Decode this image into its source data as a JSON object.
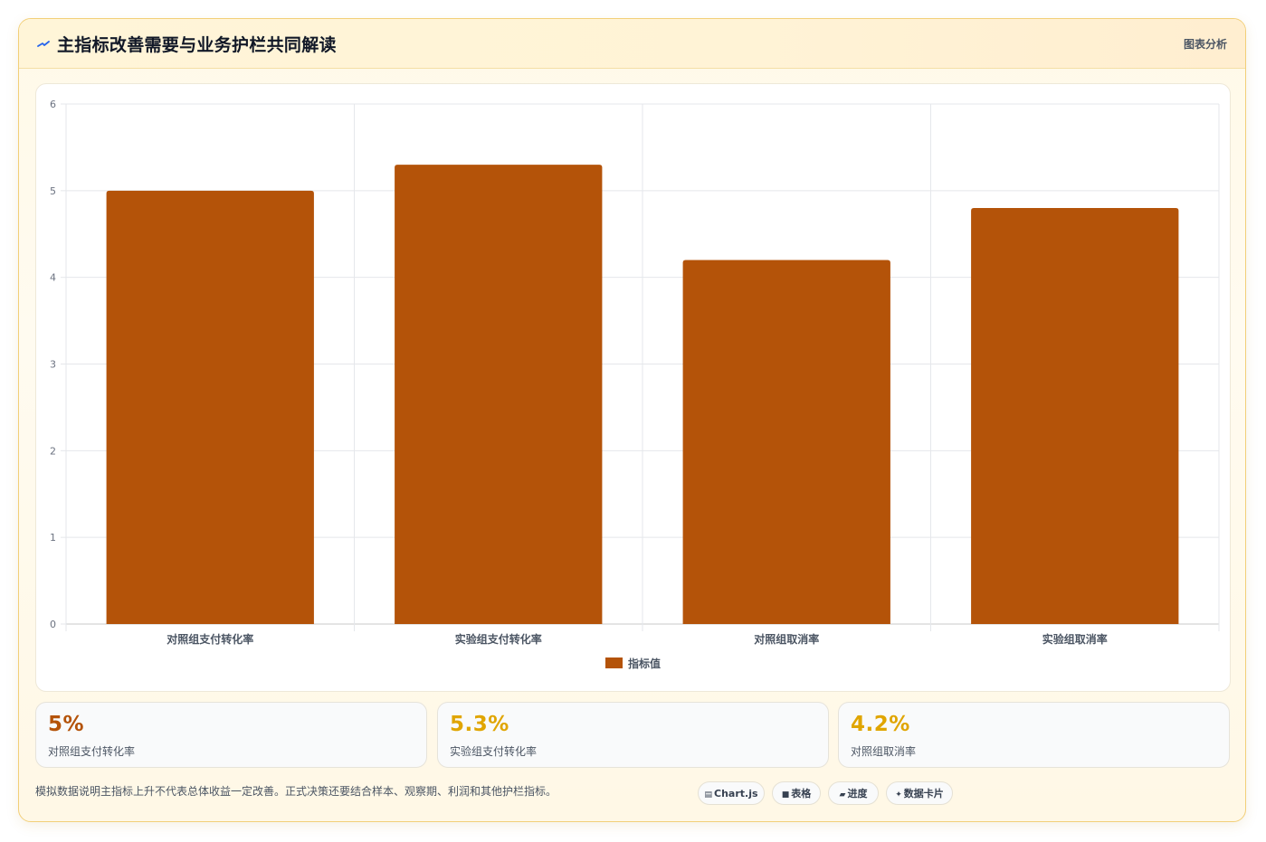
{
  "header": {
    "title": "主指标改善需要与业务护栏共同解读",
    "tag": "图表分析"
  },
  "chart_data": {
    "type": "bar",
    "categories": [
      "对照组支付转化率",
      "实验组支付转化率",
      "对照组取消率",
      "实验组取消率"
    ],
    "series": [
      {
        "name": "指标值",
        "values": [
          5.0,
          5.3,
          4.2,
          4.8
        ]
      }
    ],
    "ylim": [
      0,
      6
    ],
    "yticks": [
      "0",
      "1",
      "2",
      "3",
      "4",
      "5",
      "6"
    ],
    "grid": true,
    "legend": "bottom",
    "bar_color": "#b45309"
  },
  "stats": [
    {
      "value": "5%",
      "label": "对照组支付转化率",
      "color": "#b45309"
    },
    {
      "value": "5.3%",
      "label": "实验组支付转化率",
      "color": "#e0a500"
    },
    {
      "value": "4.2%",
      "label": "对照组取消率",
      "color": "#e0a500"
    }
  ],
  "footer": {
    "note": "模拟数据说明主指标上升不代表总体收益一定改善。正式决策还要结合样本、观察期、利润和其他护栏指标。",
    "chips": [
      {
        "icon": "chart-icon",
        "label": "Chart.js"
      },
      {
        "icon": "table-icon",
        "label": "表格"
      },
      {
        "icon": "progress-icon",
        "label": "进度"
      },
      {
        "icon": "sparkle-icon",
        "label": "数据卡片"
      }
    ]
  }
}
